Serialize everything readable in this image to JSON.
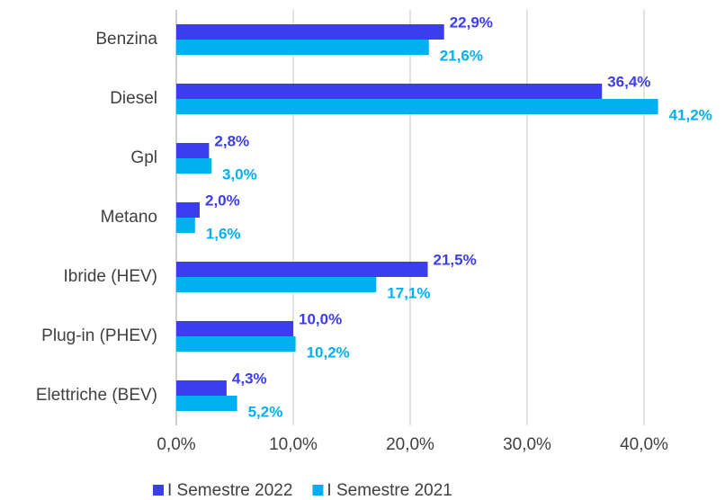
{
  "chart_data": {
    "type": "hbar",
    "categories": [
      "Benzina",
      "Diesel",
      "Gpl",
      "Metano",
      "Ibride (HEV)",
      "Plug-in (PHEV)",
      "Elettriche (BEV)"
    ],
    "series": [
      {
        "name": "I Semestre 2022",
        "color": "#3d3df0",
        "values": [
          22.9,
          36.4,
          2.8,
          2.0,
          21.5,
          10.0,
          4.3
        ],
        "value_labels": [
          "22,9%",
          "36,4%",
          "2,8%",
          "2,0%",
          "21,5%",
          "10,0%",
          "4,3%"
        ]
      },
      {
        "name": "I Semestre 2021",
        "color": "#00b0f0",
        "values": [
          21.6,
          41.2,
          3.0,
          1.6,
          17.1,
          10.2,
          5.2
        ],
        "value_labels": [
          "21,6%",
          "41,2%",
          "3,0%",
          "1,6%",
          "17,1%",
          "10,2%",
          "5,2%"
        ]
      }
    ],
    "xlim": [
      0,
      45
    ],
    "xticks": [
      {
        "value": 0,
        "label": "0,0%"
      },
      {
        "value": 10,
        "label": "10,0%"
      },
      {
        "value": 20,
        "label": "20,0%"
      },
      {
        "value": 30,
        "label": "30,0%"
      },
      {
        "value": 40,
        "label": "40,0%"
      }
    ],
    "grid": true,
    "legend": "bottom"
  }
}
